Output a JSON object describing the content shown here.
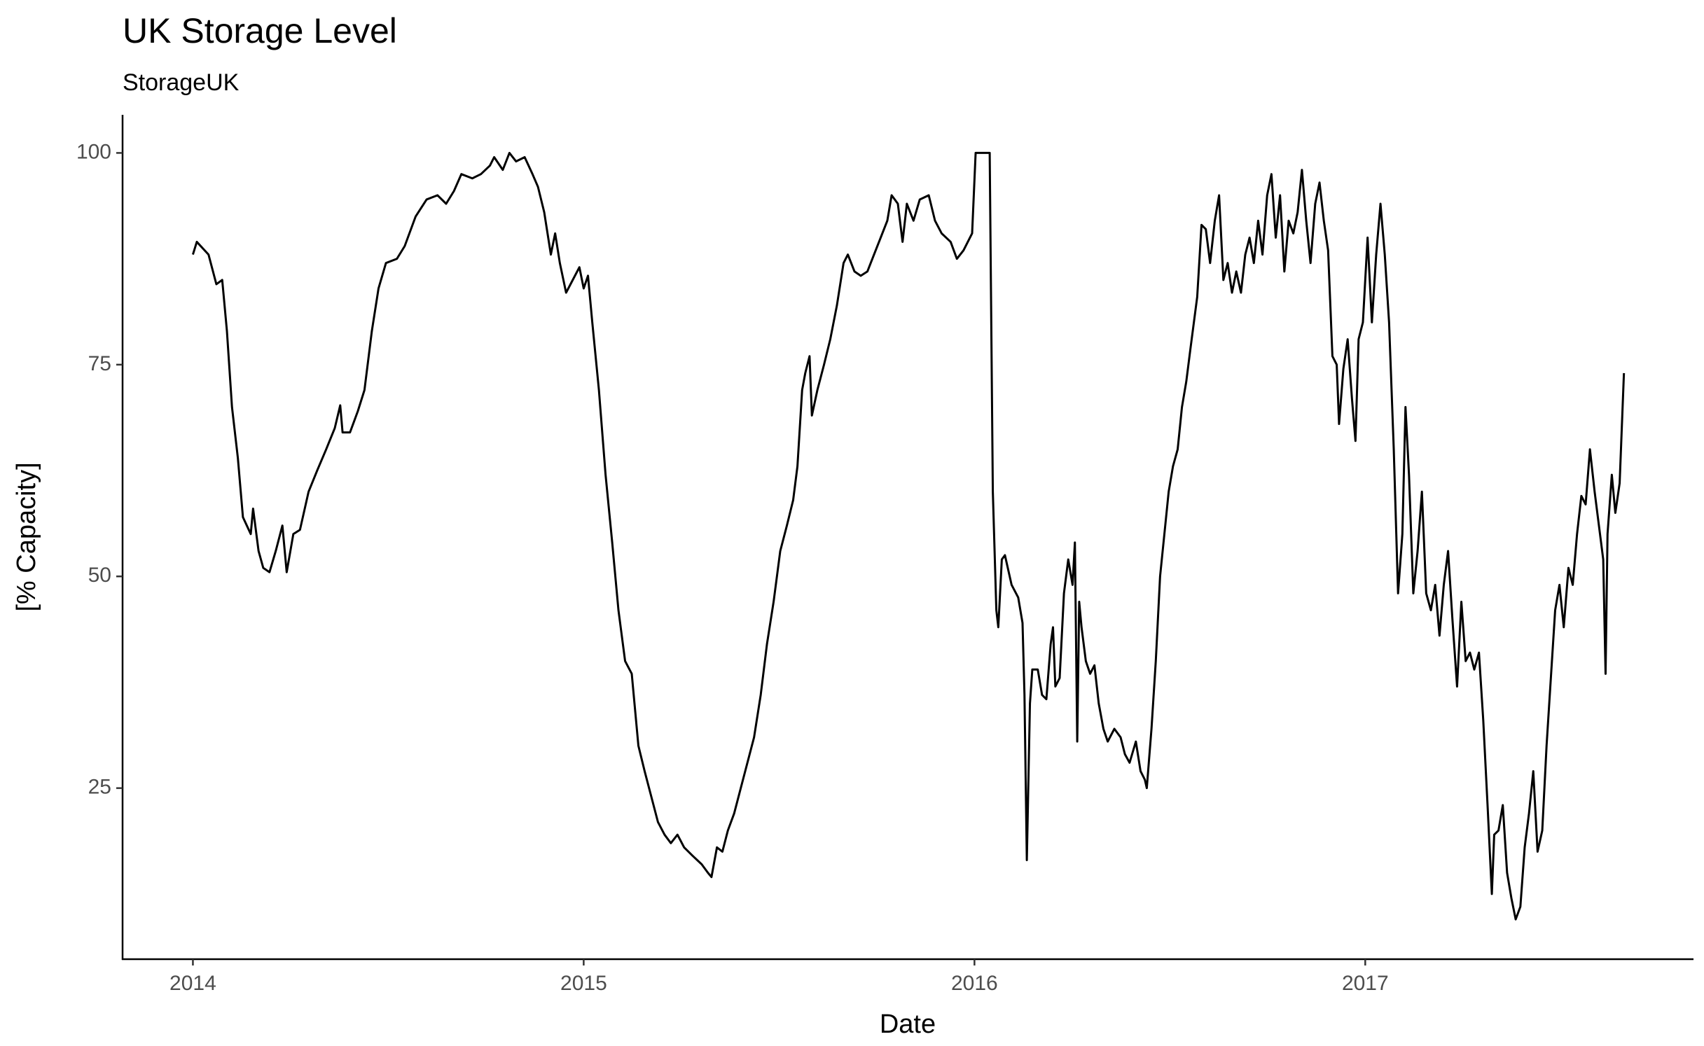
{
  "chart_data": {
    "type": "line",
    "title": "UK Storage Level",
    "subtitle": "StorageUK",
    "x_label": "Date",
    "y_label": "[% Capacity]",
    "x": [
      2014.0,
      2014.01,
      2014.04,
      2014.06,
      2014.075,
      2014.087,
      2014.1,
      2014.115,
      2014.128,
      2014.148,
      2014.154,
      2014.168,
      2014.18,
      2014.196,
      2014.212,
      2014.229,
      2014.24,
      2014.257,
      2014.274,
      2014.296,
      2014.318,
      2014.341,
      2014.363,
      2014.377,
      2014.383,
      2014.402,
      2014.422,
      2014.439,
      2014.458,
      2014.475,
      2014.494,
      2014.522,
      2014.542,
      2014.57,
      2014.598,
      2014.626,
      2014.648,
      2014.668,
      2014.687,
      2014.715,
      2014.737,
      2014.76,
      2014.771,
      2014.793,
      2014.81,
      2014.827,
      2014.849,
      2014.869,
      2014.883,
      2014.899,
      2014.916,
      2014.927,
      2014.939,
      2014.955,
      2014.972,
      2014.989,
      2015.0,
      2015.011,
      2015.022,
      2015.039,
      2015.056,
      2015.073,
      2015.089,
      2015.106,
      2015.123,
      2015.14,
      2015.156,
      2015.173,
      2015.19,
      2015.207,
      2015.223,
      2015.24,
      2015.257,
      2015.279,
      2015.302,
      2015.318,
      2015.327,
      2015.341,
      2015.355,
      2015.369,
      2015.385,
      2015.402,
      2015.419,
      2015.436,
      2015.453,
      2015.469,
      2015.486,
      2015.503,
      2015.52,
      2015.536,
      2015.547,
      2015.559,
      2015.567,
      2015.578,
      2015.584,
      2015.598,
      2015.615,
      2015.631,
      2015.648,
      2015.665,
      2015.676,
      2015.693,
      2015.709,
      2015.726,
      2015.743,
      2015.76,
      2015.777,
      2015.788,
      2015.804,
      2015.816,
      2015.827,
      2015.844,
      2015.86,
      2015.883,
      2015.899,
      2015.916,
      2015.939,
      2015.955,
      2015.972,
      2015.994,
      2016.003,
      2016.039,
      2016.047,
      2016.056,
      2016.061,
      2016.07,
      2016.078,
      2016.095,
      2016.112,
      2016.123,
      2016.128,
      2016.134,
      2016.142,
      2016.148,
      2016.162,
      2016.173,
      2016.184,
      2016.195,
      2016.201,
      2016.207,
      2016.218,
      2016.229,
      2016.24,
      2016.251,
      2016.257,
      2016.263,
      2016.268,
      2016.274,
      2016.285,
      2016.296,
      2016.307,
      2016.318,
      2016.33,
      2016.341,
      2016.358,
      2016.374,
      2016.385,
      2016.397,
      2016.413,
      2016.425,
      2016.436,
      2016.441,
      2016.453,
      2016.464,
      2016.475,
      2016.486,
      2016.497,
      2016.508,
      2016.52,
      2016.531,
      2016.542,
      2016.553,
      2016.57,
      2016.581,
      2016.592,
      2016.603,
      2016.615,
      2016.626,
      2016.637,
      2016.648,
      2016.659,
      2016.67,
      2016.682,
      2016.693,
      2016.704,
      2016.715,
      2016.726,
      2016.737,
      2016.749,
      2016.76,
      2016.771,
      2016.782,
      2016.793,
      2016.804,
      2016.816,
      2016.827,
      2016.838,
      2016.849,
      2016.86,
      2016.872,
      2016.883,
      2016.894,
      2016.905,
      2016.916,
      2016.927,
      2016.933,
      2016.944,
      2016.955,
      2016.966,
      2016.975,
      2016.983,
      2016.994,
      2017.006,
      2017.017,
      2017.028,
      2017.039,
      2017.05,
      2017.061,
      2017.073,
      2017.084,
      2017.095,
      2017.103,
      2017.112,
      2017.123,
      2017.134,
      2017.145,
      2017.156,
      2017.168,
      2017.179,
      2017.19,
      2017.201,
      2017.212,
      2017.223,
      2017.235,
      2017.246,
      2017.257,
      2017.268,
      2017.279,
      2017.291,
      2017.302,
      2017.313,
      2017.324,
      2017.33,
      2017.341,
      2017.352,
      2017.363,
      2017.374,
      2017.385,
      2017.397,
      2017.408,
      2017.419,
      2017.43,
      2017.441,
      2017.453,
      2017.464,
      2017.475,
      2017.486,
      2017.497,
      2017.508,
      2017.52,
      2017.531,
      2017.542,
      2017.553,
      2017.564,
      2017.575,
      2017.587,
      2017.598,
      2017.609,
      2017.615,
      2017.62,
      2017.631,
      2017.64,
      2017.651,
      2017.662
    ],
    "values": [
      88,
      89.5,
      88,
      84.5,
      85,
      79,
      70,
      64,
      57,
      55,
      58,
      53,
      51,
      50.5,
      53,
      56,
      50.5,
      55,
      55.5,
      60,
      62.5,
      65,
      67.5,
      70.2,
      67,
      67,
      69.5,
      72,
      79,
      84,
      87,
      87.5,
      89,
      92.5,
      94.5,
      95,
      94,
      95.5,
      97.5,
      97,
      97.5,
      98.5,
      99.5,
      98,
      100,
      99,
      99.5,
      97.5,
      96,
      93,
      88,
      90.5,
      87,
      83.5,
      85,
      86.5,
      84,
      85.5,
      80,
      72,
      62,
      54,
      46,
      40,
      38.5,
      30,
      27,
      24,
      21,
      19.5,
      18.5,
      19.5,
      18,
      17,
      16,
      15,
      14.5,
      18,
      17.5,
      20,
      22,
      25,
      28,
      31,
      36,
      42,
      47,
      53,
      56,
      59,
      63,
      72,
      74,
      76,
      69,
      72,
      75,
      78,
      82,
      87,
      88,
      86,
      85.5,
      86,
      88,
      90,
      92,
      95,
      94,
      89.5,
      94,
      92,
      94.5,
      95,
      92,
      90.5,
      89.5,
      87.5,
      88.5,
      90.5,
      100,
      100,
      60,
      46,
      44,
      52,
      52.5,
      49,
      47.5,
      44.5,
      36,
      16.5,
      35,
      39,
      39,
      36,
      35.5,
      42,
      44,
      37,
      38,
      48,
      52,
      49,
      54,
      30.5,
      47,
      44,
      40,
      38.5,
      39.5,
      35,
      32,
      30.5,
      32,
      31,
      29,
      28,
      30.5,
      27,
      26,
      25,
      32,
      40,
      50,
      55,
      60,
      63,
      65,
      70,
      73,
      77,
      83,
      91.5,
      91,
      87,
      92,
      95,
      85,
      87,
      83.5,
      86,
      83.5,
      88,
      90,
      87,
      92,
      88,
      95,
      97.5,
      90,
      95,
      86,
      92,
      90.5,
      93,
      98,
      92,
      87,
      94,
      96.5,
      92,
      88.5,
      76,
      75,
      68,
      74.5,
      78,
      71,
      66,
      78,
      80,
      90,
      80,
      88,
      94,
      88,
      80,
      65,
      48,
      55,
      70,
      62,
      48,
      53,
      60,
      48,
      46,
      49,
      43,
      49,
      53,
      45,
      37,
      47,
      40,
      41,
      39,
      41,
      33,
      23,
      12.5,
      19.5,
      20,
      23,
      15,
      12,
      9.5,
      11,
      18,
      22,
      27,
      17.5,
      20,
      30,
      38,
      46,
      49,
      44,
      51,
      49,
      55,
      59.5,
      58.5,
      65,
      60,
      56,
      52,
      38.5,
      55,
      62,
      57.5,
      61,
      74
    ],
    "color": "#000000",
    "xlim": [
      2013.82,
      2017.84
    ],
    "xticks": [
      2014,
      2015,
      2016,
      2017
    ],
    "ylim": [
      4.8,
      104.5
    ],
    "yticks": [
      25,
      50,
      75,
      100
    ],
    "grid": false
  }
}
